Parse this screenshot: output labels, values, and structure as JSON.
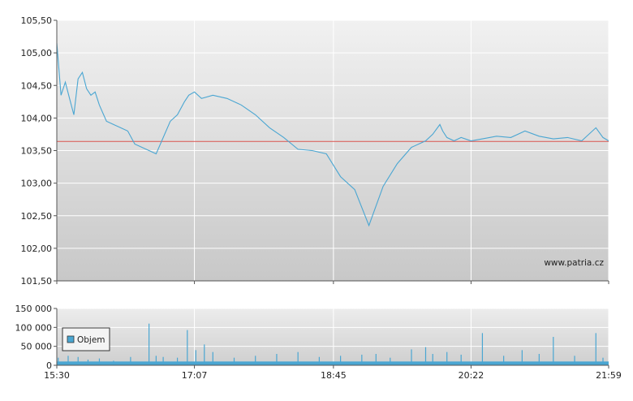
{
  "watermark": "www.patria.cz",
  "colors": {
    "series": "#4aa6d2",
    "reference_line": "#d9534f",
    "grid": "#ffffff",
    "legend_swatch": "#4aa6d2"
  },
  "chart_data": [
    {
      "type": "line",
      "title": "",
      "xlabel": "",
      "ylabel": "",
      "xlim": [
        "15:30",
        "21:59"
      ],
      "ylim": [
        101.5,
        105.5
      ],
      "x_tick_labels": [
        "15:30",
        "17:07",
        "18:45",
        "20:22",
        "21:59"
      ],
      "y_tick_labels": [
        "101,50",
        "102,00",
        "102,50",
        "103,00",
        "103,50",
        "104,00",
        "104,50",
        "105,00",
        "105,50"
      ],
      "y_ticks": [
        101.5,
        102.0,
        102.5,
        103.0,
        103.5,
        104.0,
        104.5,
        105.0,
        105.5
      ],
      "grid": true,
      "reference_line": 103.64,
      "series": [
        {
          "x": [
            "15:30",
            "15:33",
            "15:36",
            "15:39",
            "15:42",
            "15:45",
            "15:48",
            "15:51",
            "15:54",
            "15:57",
            "16:00",
            "16:05",
            "16:10",
            "16:15",
            "16:20",
            "16:25",
            "16:30",
            "16:40",
            "16:50",
            "16:55",
            "17:00",
            "17:03",
            "17:07",
            "17:12",
            "17:20",
            "17:30",
            "17:40",
            "17:50",
            "18:00",
            "18:10",
            "18:20",
            "18:30",
            "18:40",
            "18:50",
            "19:00",
            "19:10",
            "19:20",
            "19:30",
            "19:40",
            "19:50",
            "19:55",
            "20:00",
            "20:02",
            "20:05",
            "20:10",
            "20:15",
            "20:22",
            "20:30",
            "20:40",
            "20:50",
            "21:00",
            "21:10",
            "21:20",
            "21:30",
            "21:40",
            "21:50",
            "21:55",
            "21:59"
          ],
          "y": [
            105.15,
            104.35,
            104.55,
            104.3,
            104.05,
            104.6,
            104.7,
            104.45,
            104.35,
            104.4,
            104.2,
            103.95,
            103.9,
            103.85,
            103.8,
            103.6,
            103.55,
            103.45,
            103.95,
            104.05,
            104.25,
            104.35,
            104.4,
            104.3,
            104.35,
            104.3,
            104.2,
            104.05,
            103.85,
            103.7,
            103.52,
            103.5,
            103.45,
            103.1,
            102.9,
            102.35,
            102.95,
            103.3,
            103.55,
            103.65,
            103.75,
            103.9,
            103.8,
            103.7,
            103.65,
            103.7,
            103.65,
            103.68,
            103.72,
            103.7,
            103.8,
            103.72,
            103.68,
            103.7,
            103.65,
            103.85,
            103.7,
            103.65
          ]
        }
      ]
    },
    {
      "type": "bar",
      "title": "",
      "xlabel": "",
      "ylabel": "",
      "xlim": [
        "15:30",
        "21:59"
      ],
      "ylim": [
        0,
        150000
      ],
      "x_tick_labels": [
        "15:30",
        "17:07",
        "18:45",
        "20:22",
        "21:59"
      ],
      "y_tick_labels": [
        "0",
        "50 000",
        "100 000",
        "150 000"
      ],
      "y_ticks": [
        0,
        50000,
        100000,
        150000
      ],
      "grid": true,
      "legend": {
        "label": "Objem",
        "placement": "left"
      },
      "baseline_volume": 10000,
      "series": [
        {
          "name": "Objem",
          "x": [
            "15:31",
            "15:38",
            "15:45",
            "15:52",
            "16:00",
            "16:10",
            "16:22",
            "16:35",
            "16:40",
            "16:45",
            "16:55",
            "17:02",
            "17:08",
            "17:14",
            "17:20",
            "17:35",
            "17:50",
            "18:05",
            "18:20",
            "18:35",
            "18:50",
            "19:05",
            "19:15",
            "19:25",
            "19:40",
            "19:50",
            "19:55",
            "20:05",
            "20:15",
            "20:30",
            "20:45",
            "20:58",
            "21:10",
            "21:20",
            "21:35",
            "21:50",
            "21:55"
          ],
          "values": [
            20000,
            25000,
            22000,
            15000,
            18000,
            12000,
            22000,
            110000,
            25000,
            22000,
            20000,
            93000,
            40000,
            55000,
            35000,
            20000,
            25000,
            30000,
            35000,
            22000,
            25000,
            28000,
            30000,
            20000,
            42000,
            48000,
            30000,
            35000,
            28000,
            85000,
            25000,
            40000,
            30000,
            75000,
            25000,
            85000,
            20000
          ]
        }
      ]
    }
  ]
}
